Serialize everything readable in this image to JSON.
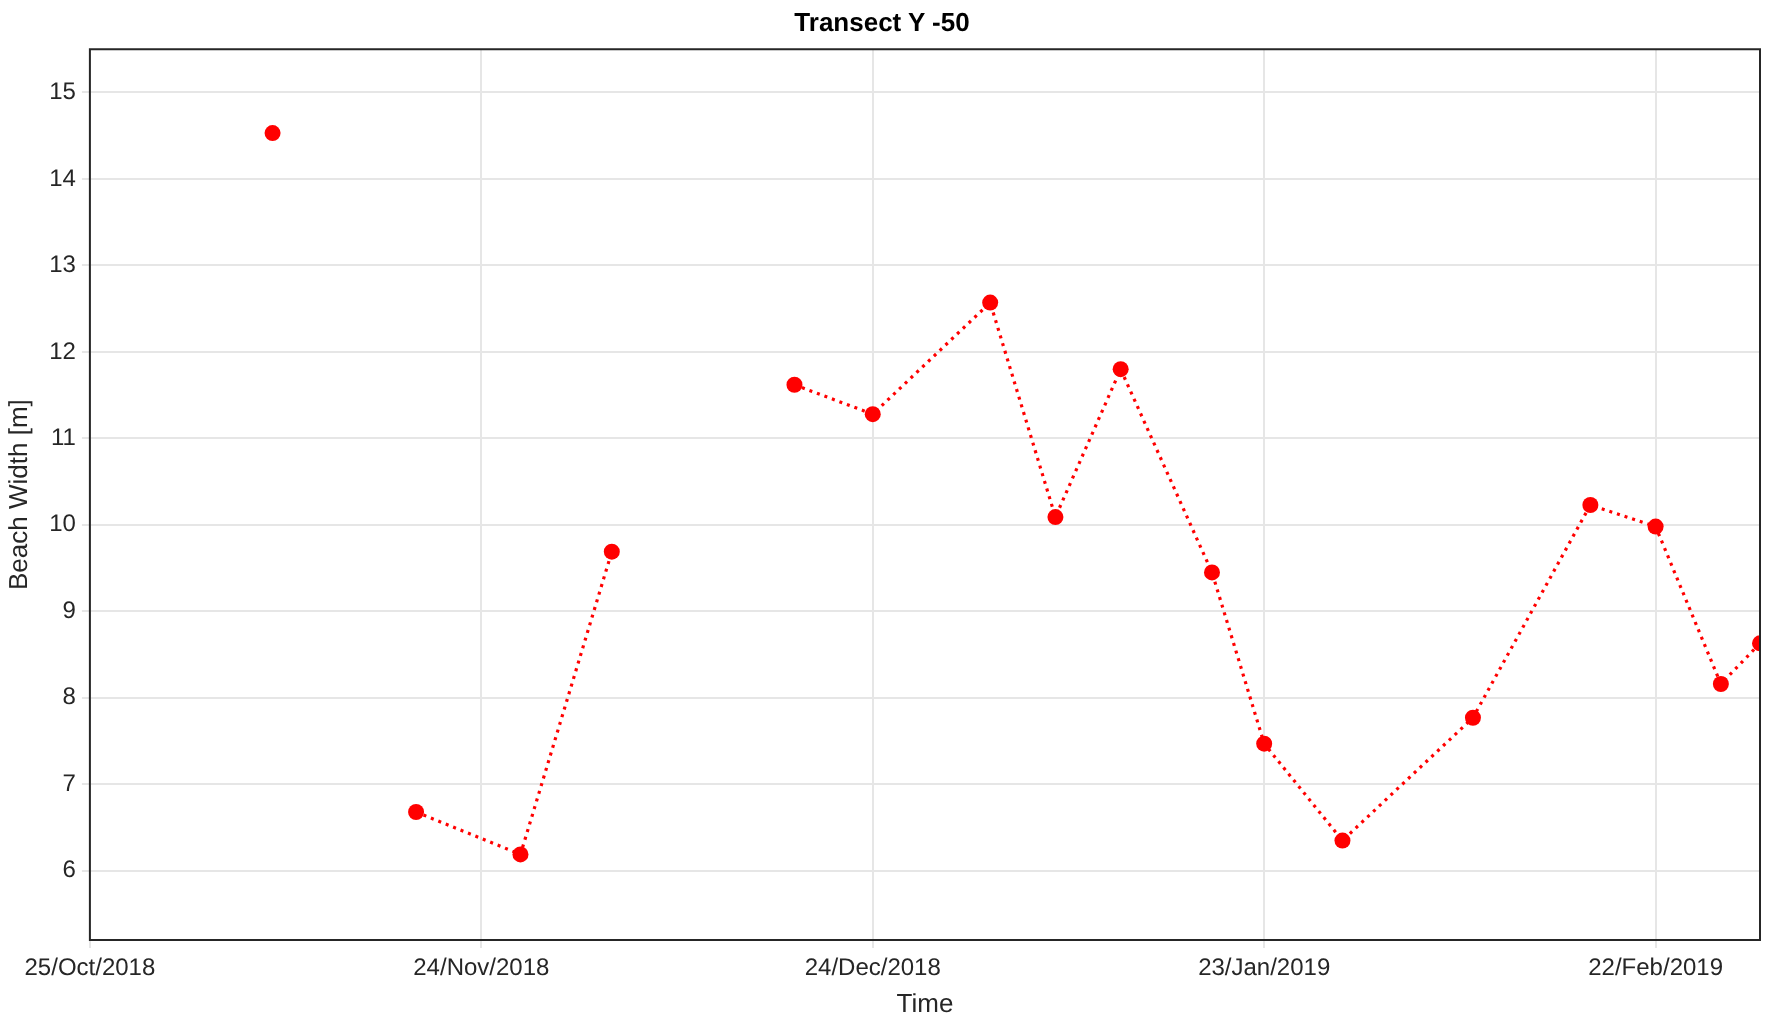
{
  "chart_data": {
    "type": "line",
    "title": "Transect Y -50",
    "xlabel": "Time",
    "ylabel": "Beach Width [m]",
    "x": [
      "2018-11-08",
      "2018-11-14",
      "2018-11-19",
      "2018-11-27",
      "2018-12-04",
      "2018-12-11",
      "2018-12-18",
      "2018-12-24",
      "2019-01-02",
      "2019-01-07",
      "2019-01-12",
      "2019-01-19",
      "2019-01-23",
      "2019-01-29",
      "2019-02-08",
      "2019-02-17",
      "2019-02-22",
      "2019-02-27",
      "2019-03-02"
    ],
    "series": [
      {
        "color": "#ff0000",
        "values": [
          14.53,
          null,
          6.68,
          6.19,
          9.69,
          null,
          11.62,
          11.28,
          12.57,
          10.09,
          11.8,
          9.45,
          7.47,
          6.35,
          7.77,
          10.23,
          9.98,
          8.16,
          8.63
        ]
      }
    ],
    "xlim": [
      "2018-10-25",
      "2019-03-02"
    ],
    "xticks": [
      {
        "value": "2018-10-25",
        "label": "25/Oct/2018"
      },
      {
        "value": "2018-11-24",
        "label": "24/Nov/2018"
      },
      {
        "value": "2018-12-24",
        "label": "24/Dec/2018"
      },
      {
        "value": "2019-01-23",
        "label": "23/Jan/2019"
      },
      {
        "value": "2019-02-22",
        "label": "22/Feb/2019"
      }
    ],
    "ylim": [
      5.2,
      15.5
    ],
    "yticks": [
      6,
      7,
      8,
      9,
      10,
      11,
      12,
      13,
      14,
      15
    ],
    "grid": true,
    "legend": false,
    "marker": "circle",
    "line_style": "dotted"
  }
}
